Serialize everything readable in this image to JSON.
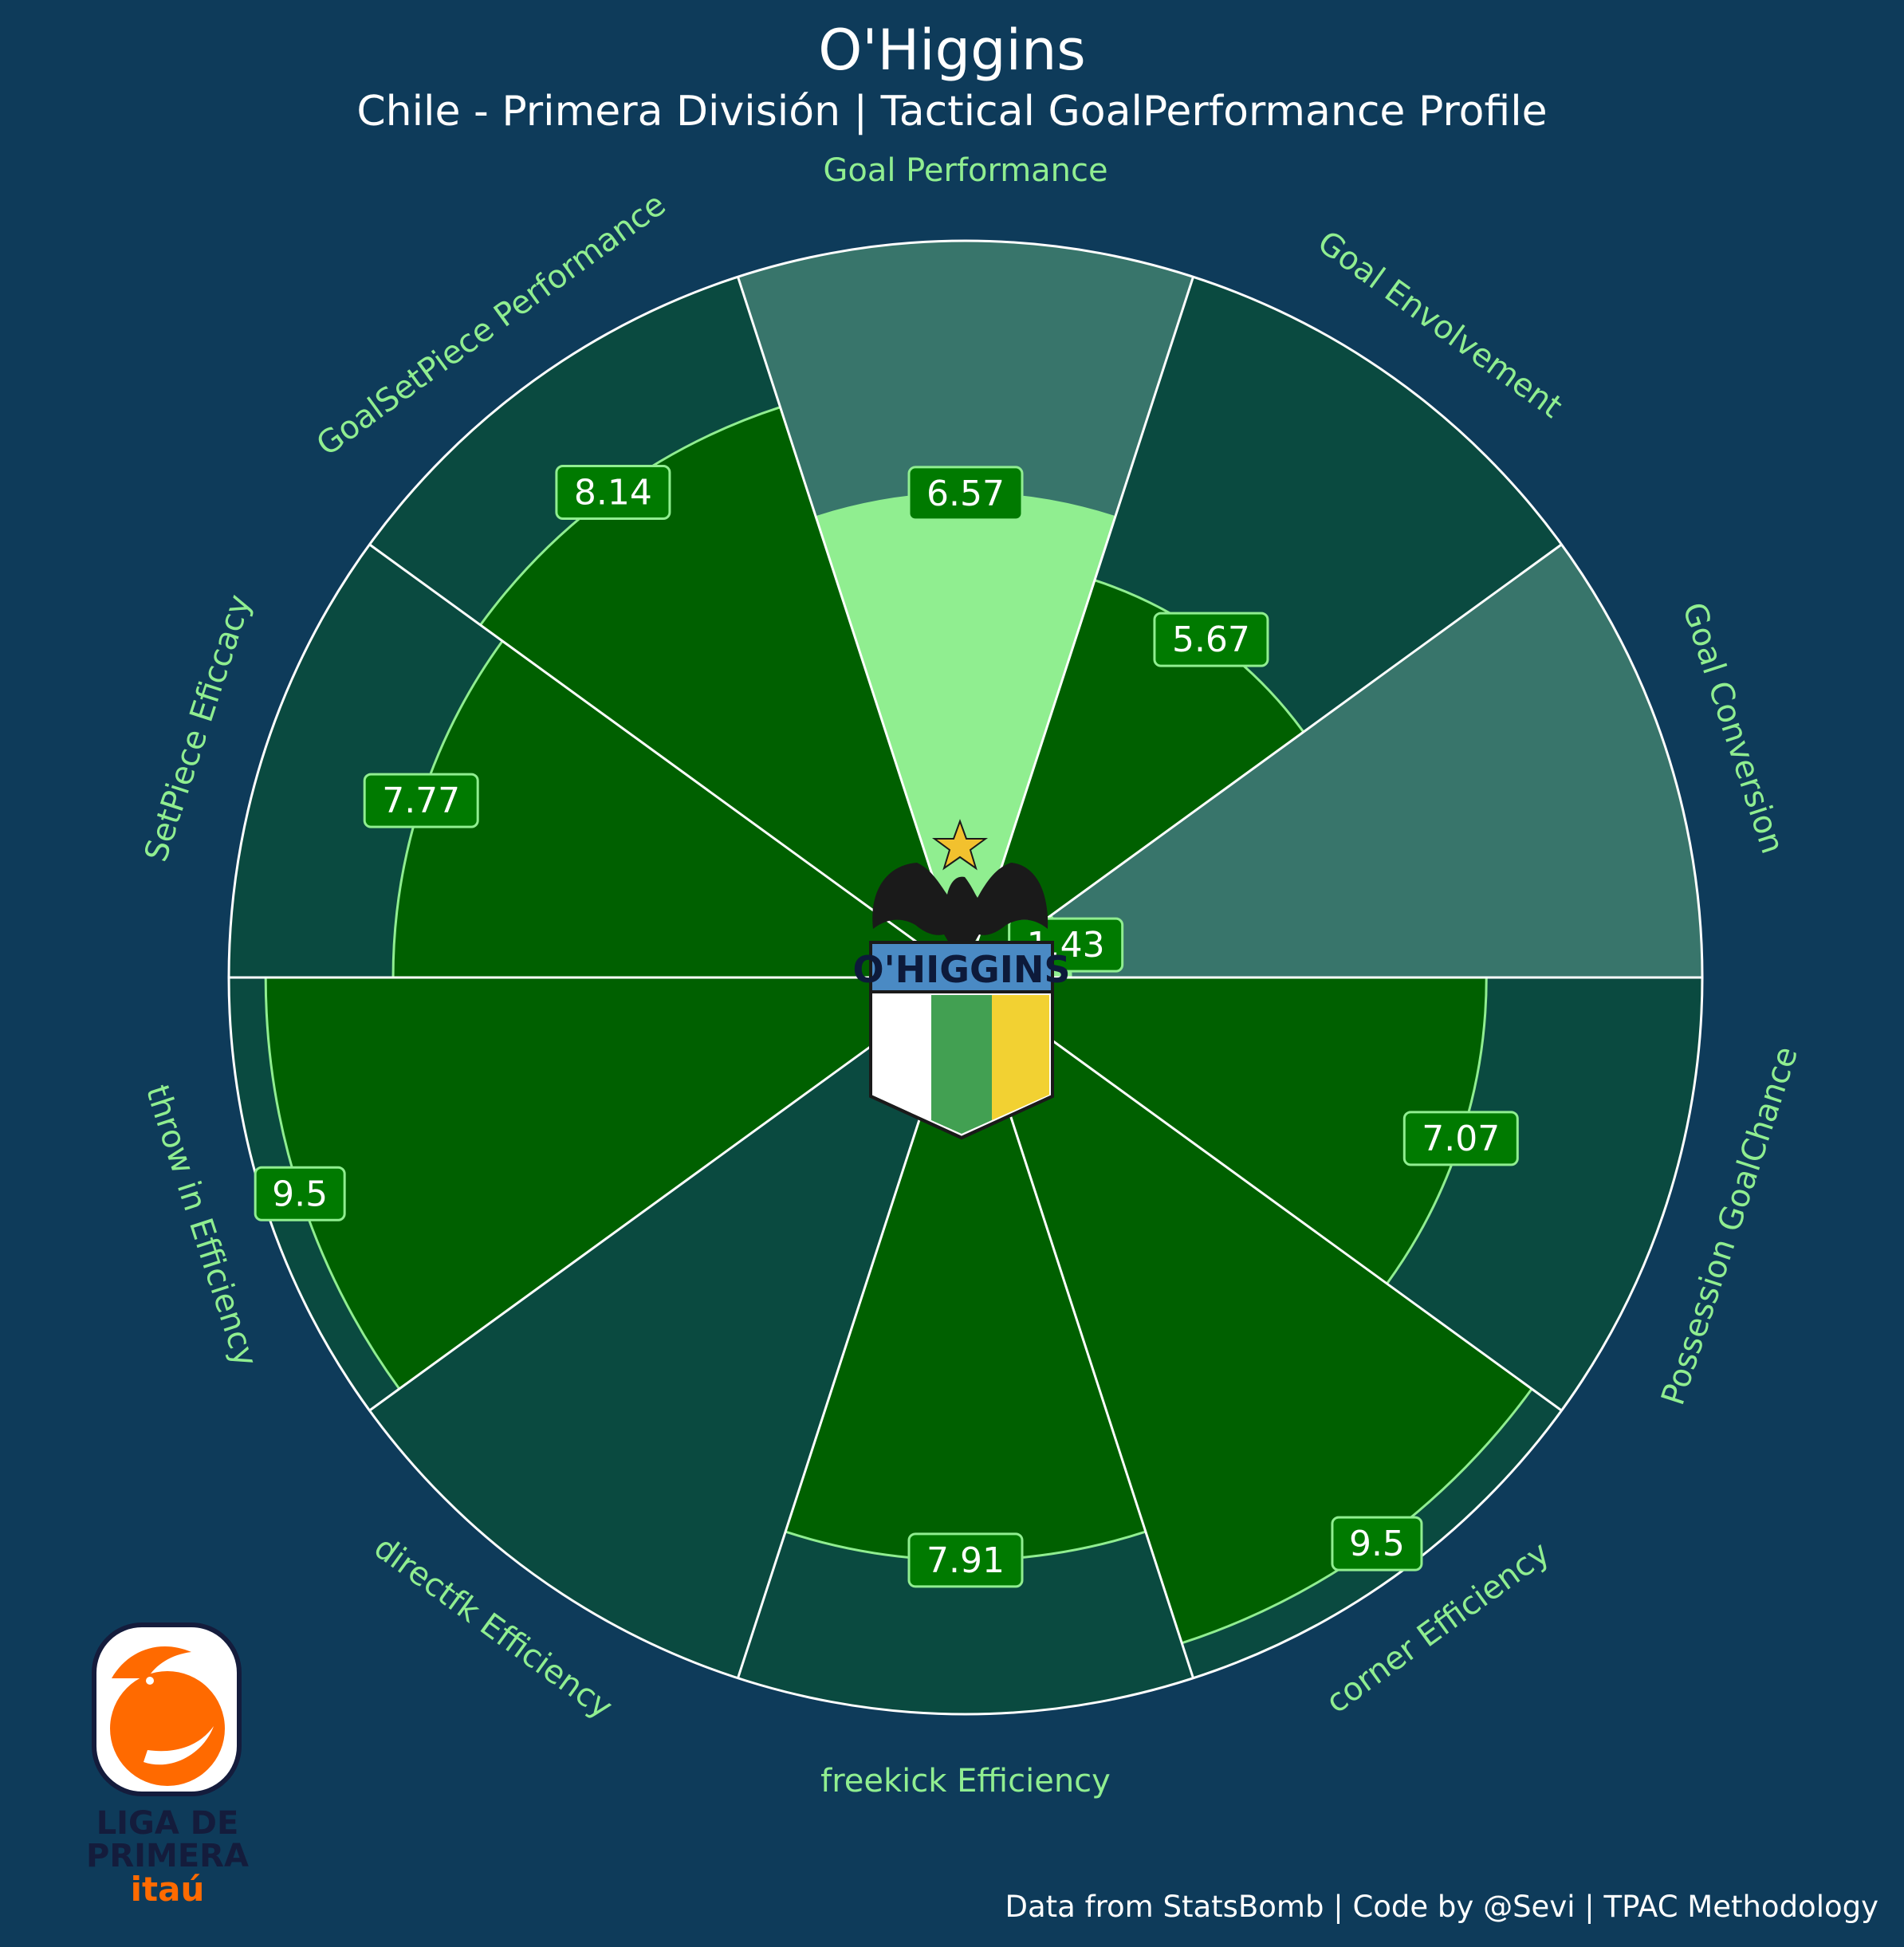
{
  "header": {
    "title": "O'Higgins",
    "subtitle": "Chile - Primera División | Tactical GoalPerformance Profile"
  },
  "footer": {
    "credit": "Data from StatsBomb | Code by @Sevi | TPAC Methodology"
  },
  "logos": {
    "club_text": "O'HIGGINS",
    "league_line1": "LIGA DE",
    "league_line2": "PRIMERA",
    "league_line3": "itaú"
  },
  "colors": {
    "background": "#0e3b5a",
    "ring_dark": "#0a4a40",
    "ring_light": "#38756b",
    "bar_fill": "#006000",
    "bar_highlight": "#90ee90",
    "label_text": "#90ee90",
    "value_box": "#007a00",
    "value_border": "#90ee90"
  },
  "chart_data": {
    "type": "radar",
    "subtype": "polar-bar (pizza)",
    "range": [
      0,
      10
    ],
    "highlight": [
      "Goal Performance",
      "Goal Conversion"
    ],
    "categories": [
      "Goal Performance",
      "Goal Envolvement",
      "Goal Conversion",
      "Possession GoalChance",
      "corner Efficiency",
      "freekick Efficiency",
      "directfk Efficiency",
      "throw in Efficiency",
      "SetPiece Eficcacy",
      "GoalSetPiece Performance"
    ],
    "values": [
      6.57,
      5.67,
      1.43,
      7.07,
      9.5,
      7.91,
      1.0,
      9.5,
      7.77,
      8.14
    ],
    "value_labels": [
      "6.57",
      "5.67",
      "1.43",
      "7.07",
      "9.5",
      "7.91",
      "",
      "9.5",
      "7.77",
      "8.14"
    ]
  }
}
